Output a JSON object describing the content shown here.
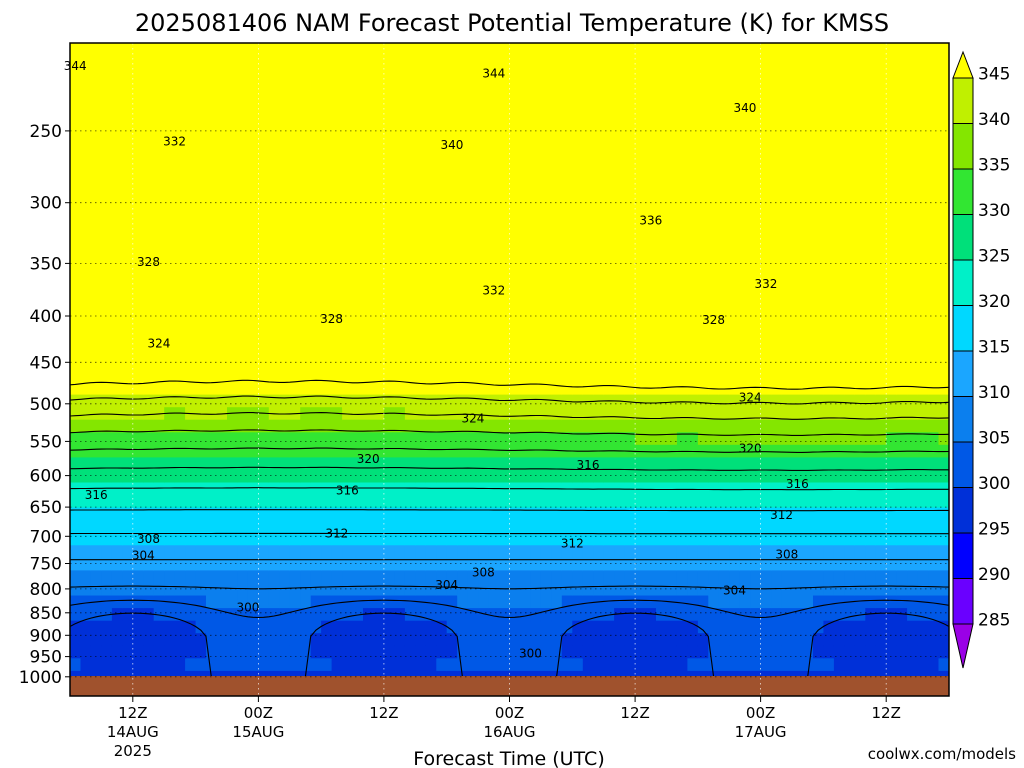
{
  "chart_data": {
    "type": "heatmap",
    "title": "2025081406 NAM Forecast Potential Temperature (K) for KMSS",
    "xlabel": "Forecast Time (UTC)",
    "ylabel": "",
    "y_scale": "log-pressure",
    "ylim": [
      1050,
      200
    ],
    "y_ticks": [
      250,
      300,
      350,
      400,
      450,
      500,
      550,
      600,
      650,
      700,
      750,
      800,
      850,
      900,
      950,
      1000
    ],
    "x_ticks": [
      {
        "hour": 6,
        "label": "12Z",
        "sub1": "14AUG",
        "sub2": "2025"
      },
      {
        "hour": 18,
        "label": "00Z",
        "sub1": "15AUG",
        "sub2": ""
      },
      {
        "hour": 30,
        "label": "12Z",
        "sub1": "",
        "sub2": ""
      },
      {
        "hour": 42,
        "label": "00Z",
        "sub1": "16AUG",
        "sub2": ""
      },
      {
        "hour": 54,
        "label": "12Z",
        "sub1": "",
        "sub2": ""
      },
      {
        "hour": 66,
        "label": "00Z",
        "sub1": "17AUG",
        "sub2": ""
      },
      {
        "hour": 78,
        "label": "12Z",
        "sub1": "",
        "sub2": ""
      }
    ],
    "xlim": [
      0,
      84
    ],
    "colorbar": {
      "levels": [
        285,
        290,
        295,
        300,
        305,
        310,
        315,
        320,
        325,
        330,
        335,
        340,
        345
      ],
      "colors": [
        "#9a00e6",
        "#6a00ff",
        "#0000ff",
        "#0030d8",
        "#0058e6",
        "#0b7fee",
        "#1ba6ff",
        "#00d8ff",
        "#00f0c8",
        "#00e07a",
        "#32e632",
        "#84e600",
        "#c0f000",
        "#ffff00"
      ],
      "ticks": [
        345,
        340,
        335,
        330,
        325,
        320,
        315,
        310,
        305,
        300,
        295,
        290,
        285
      ]
    },
    "contour_labels": [
      {
        "text": "344",
        "x": 0.5,
        "p": 212
      },
      {
        "text": "344",
        "x": 40.5,
        "p": 216
      },
      {
        "text": "340",
        "x": 64.5,
        "p": 236
      },
      {
        "text": "340",
        "x": 36.5,
        "p": 259
      },
      {
        "text": "332",
        "x": 10.0,
        "p": 257
      },
      {
        "text": "336",
        "x": 55.5,
        "p": 314
      },
      {
        "text": "328",
        "x": 7.5,
        "p": 349
      },
      {
        "text": "332",
        "x": 40.5,
        "p": 375
      },
      {
        "text": "332",
        "x": 66.5,
        "p": 369
      },
      {
        "text": "328",
        "x": 25.0,
        "p": 403
      },
      {
        "text": "328",
        "x": 61.5,
        "p": 404
      },
      {
        "text": "324",
        "x": 8.5,
        "p": 429
      },
      {
        "text": "324",
        "x": 65.0,
        "p": 492
      },
      {
        "text": "324",
        "x": 38.5,
        "p": 519
      },
      {
        "text": "320",
        "x": 28.5,
        "p": 575
      },
      {
        "text": "320",
        "x": 65.0,
        "p": 560
      },
      {
        "text": "316",
        "x": 49.5,
        "p": 584
      },
      {
        "text": "316",
        "x": 2.5,
        "p": 630
      },
      {
        "text": "316",
        "x": 26.5,
        "p": 623
      },
      {
        "text": "316",
        "x": 69.5,
        "p": 613
      },
      {
        "text": "312",
        "x": 25.5,
        "p": 695
      },
      {
        "text": "312",
        "x": 48.0,
        "p": 713
      },
      {
        "text": "312",
        "x": 68.0,
        "p": 663
      },
      {
        "text": "308",
        "x": 7.5,
        "p": 705
      },
      {
        "text": "308",
        "x": 39.5,
        "p": 767
      },
      {
        "text": "308",
        "x": 68.5,
        "p": 733
      },
      {
        "text": "304",
        "x": 7.0,
        "p": 735
      },
      {
        "text": "304",
        "x": 36.0,
        "p": 792
      },
      {
        "text": "304",
        "x": 63.5,
        "p": 803
      },
      {
        "text": "300",
        "x": 17.0,
        "p": 839
      },
      {
        "text": "300",
        "x": 44.0,
        "p": 942
      }
    ],
    "credit": "coolwx.com/models"
  },
  "colors": {
    "terrain": "#a0522d",
    "background": "#ffffff",
    "credit": "#e03020"
  }
}
